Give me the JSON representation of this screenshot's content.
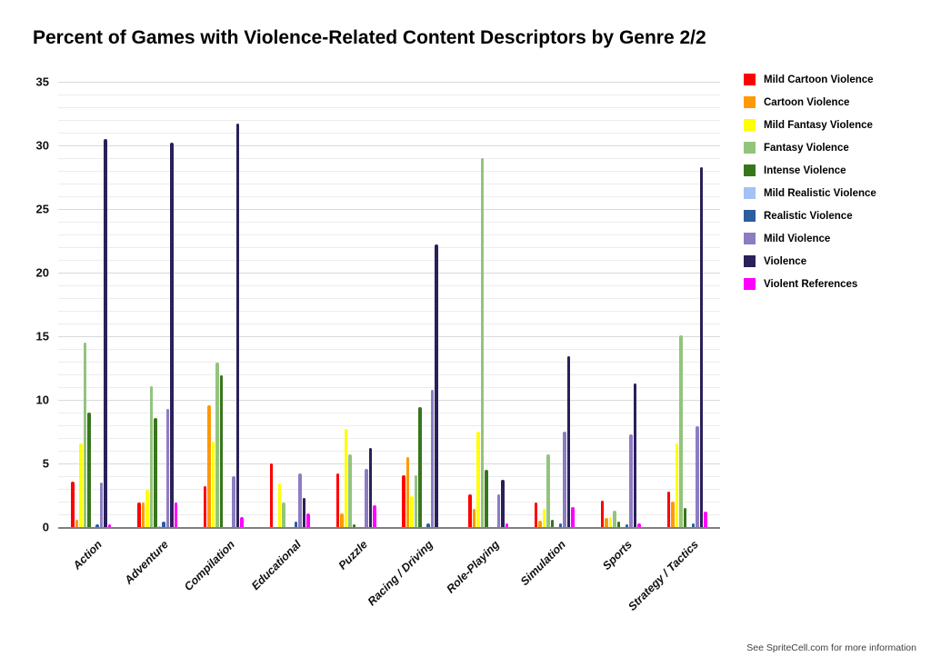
{
  "page": {
    "title": "Percent of Games with Violence-Related Content Descriptors by Genre 2/2",
    "footer": "See SpriteCell.com for more information"
  },
  "chart_data": {
    "type": "bar",
    "title": "Percent of Games with Violence-Related Content Descriptors by Genre 2/2",
    "xlabel": "",
    "ylabel": "",
    "ylim": [
      0,
      35
    ],
    "yticks": [
      0,
      5,
      10,
      15,
      20,
      25,
      30,
      35
    ],
    "minor_grid_step": 1,
    "major_grid_step": 5,
    "grid": true,
    "legend_position": "right",
    "categories": [
      "Action",
      "Adventure",
      "Compilation",
      "Educational",
      "Puzzle",
      "Racing / Driving",
      "Role-Playing",
      "Simulation",
      "Sports",
      "Strategy / Tactics"
    ],
    "series": [
      {
        "name": "Mild Cartoon Violence",
        "color": "#FF0000",
        "values": [
          3.6,
          1.9,
          3.2,
          5.0,
          4.2,
          4.1,
          2.6,
          1.9,
          2.1,
          2.8
        ]
      },
      {
        "name": "Cartoon Violence",
        "color": "#FF9900",
        "values": [
          0.6,
          1.9,
          9.6,
          0,
          1.1,
          5.5,
          1.4,
          0.5,
          0.7,
          2.0
        ]
      },
      {
        "name": "Mild Fantasy Violence",
        "color": "#FFFF00",
        "values": [
          6.6,
          2.9,
          6.7,
          3.4,
          7.7,
          2.4,
          7.5,
          1.4,
          0.8,
          6.6
        ]
      },
      {
        "name": "Fantasy Violence",
        "color": "#93C47D",
        "values": [
          14.5,
          11.1,
          12.9,
          1.9,
          5.7,
          4.1,
          29.0,
          5.7,
          1.3,
          15.1
        ]
      },
      {
        "name": "Intense Violence",
        "color": "#38761D",
        "values": [
          9.0,
          8.6,
          11.9,
          0,
          0.2,
          9.4,
          4.5,
          0.6,
          0.4,
          1.5
        ]
      },
      {
        "name": "Mild Realistic Violence",
        "color": "#A4C2F4",
        "values": [
          0,
          0.1,
          0,
          0,
          0,
          0,
          0,
          0,
          0,
          0
        ]
      },
      {
        "name": "Realistic Violence",
        "color": "#2E5C9E",
        "values": [
          0.2,
          0.4,
          0,
          0.4,
          0,
          0.3,
          0,
          0.3,
          0.2,
          0.3
        ]
      },
      {
        "name": "Mild Violence",
        "color": "#8E7CC3",
        "values": [
          3.5,
          9.3,
          4.0,
          4.2,
          4.6,
          10.8,
          2.6,
          7.5,
          7.3,
          7.9
        ]
      },
      {
        "name": "Violence",
        "color": "#2A2159",
        "values": [
          30.5,
          30.2,
          31.7,
          2.3,
          6.2,
          22.2,
          3.7,
          13.4,
          11.3,
          28.3
        ]
      },
      {
        "name": "Violent References",
        "color": "#FF00FF",
        "values": [
          0.2,
          1.9,
          0.8,
          1.1,
          1.7,
          0,
          0.3,
          1.6,
          0.3,
          1.2
        ]
      }
    ]
  }
}
